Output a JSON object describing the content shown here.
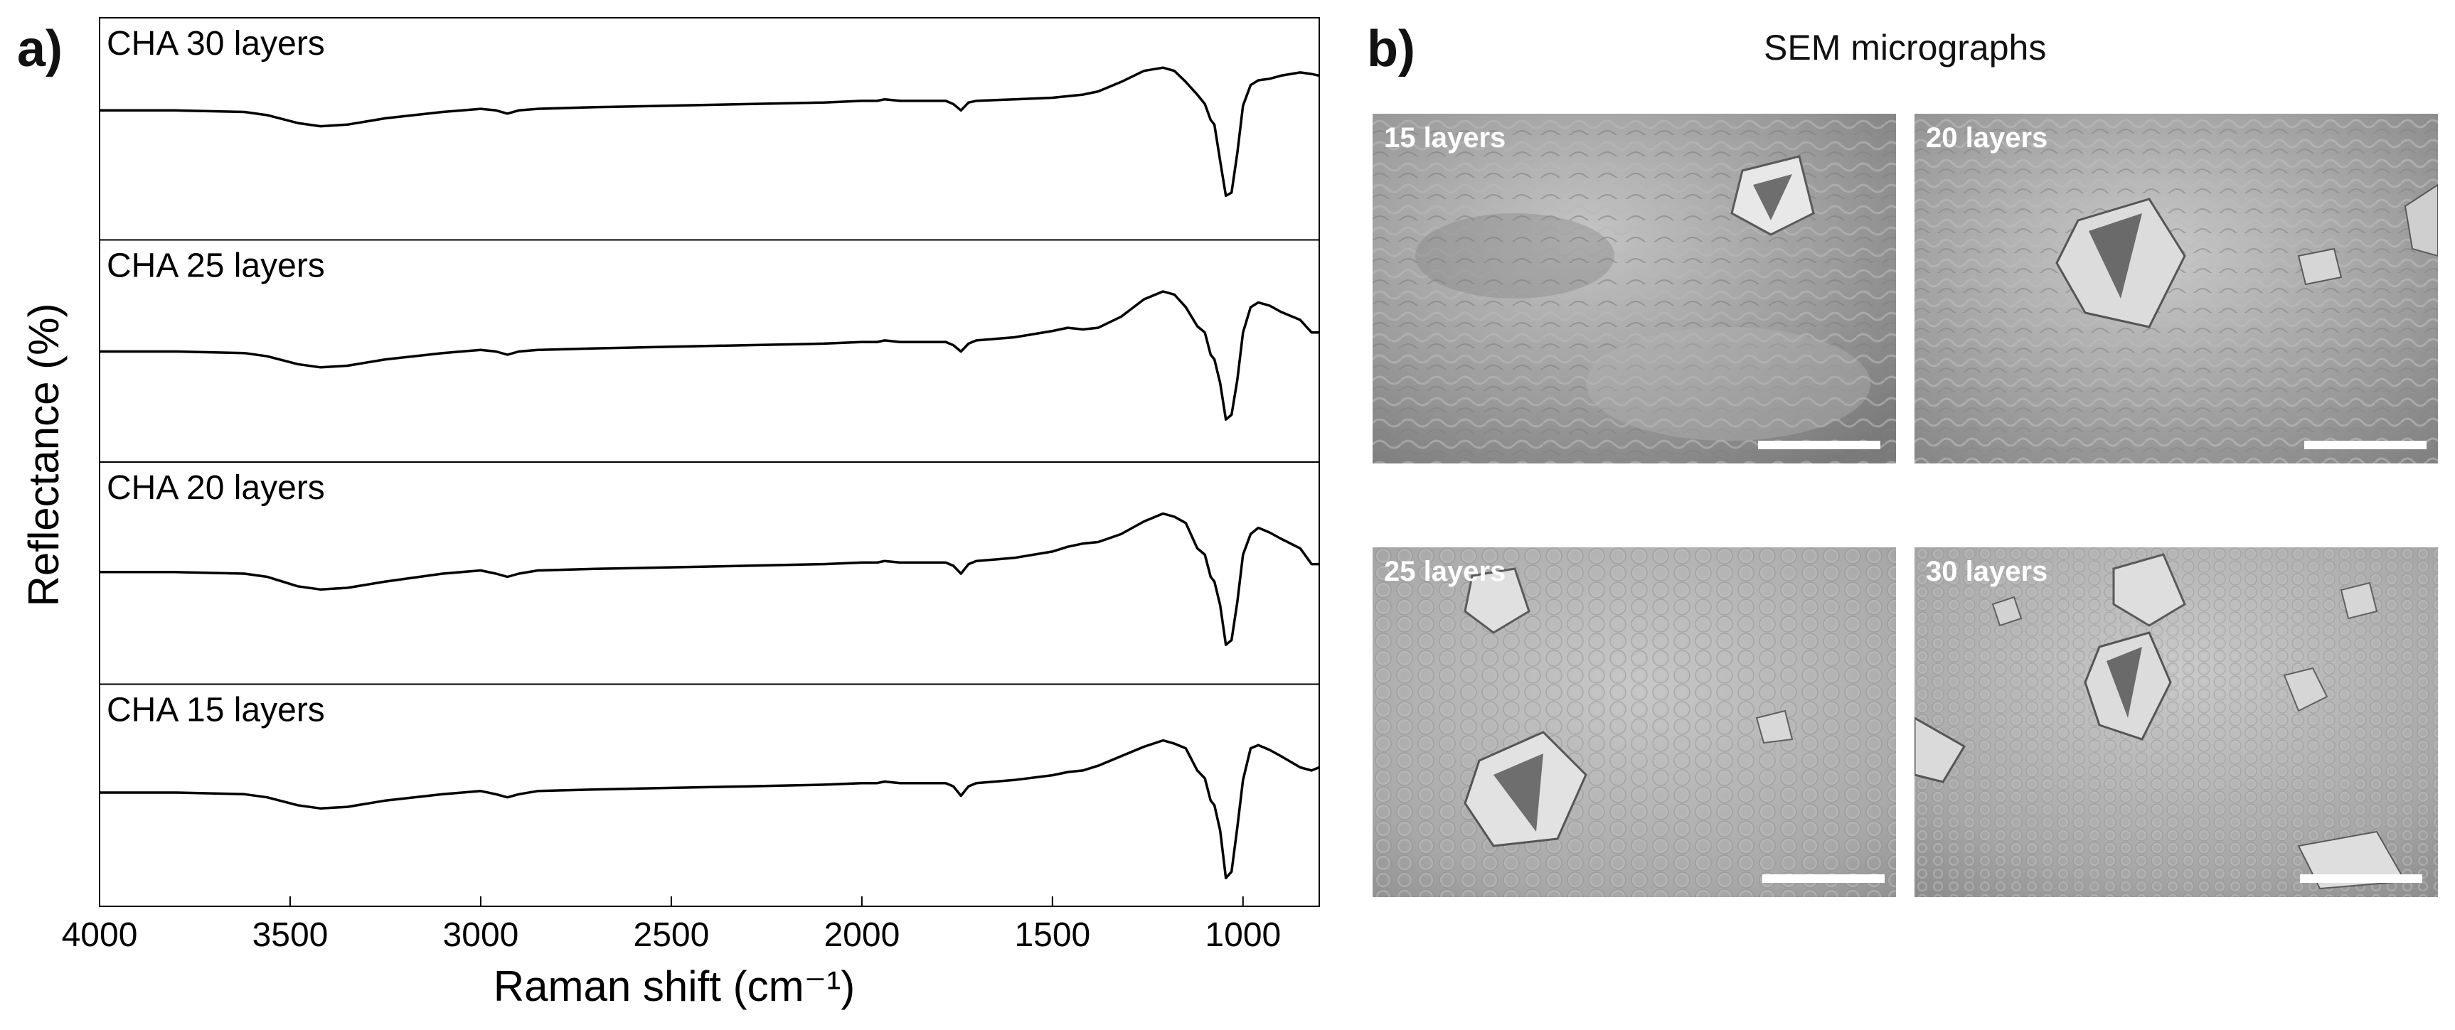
{
  "panel_a": {
    "letter": "a)"
  },
  "panel_b": {
    "letter": "b)",
    "title": "SEM micrographs",
    "images": [
      {
        "label": "15 layers"
      },
      {
        "label": "20 layers"
      },
      {
        "label": "25 layers"
      },
      {
        "label": "30 layers"
      }
    ]
  },
  "chart_data": {
    "type": "line",
    "title": "",
    "xlabel": "Raman shift (cm⁻¹)",
    "ylabel": "Reflectance (%)",
    "xlim": [
      4000,
      800
    ],
    "x_reversed": true,
    "x_ticks": [
      4000,
      3500,
      3000,
      2500,
      2000,
      1500,
      1000
    ],
    "y_ticks": false,
    "grid": false,
    "stacked_panels": true,
    "series": [
      {
        "name": "CHA 30 layers",
        "x": [
          4000,
          3800,
          3620,
          3560,
          3480,
          3420,
          3350,
          3250,
          3100,
          3000,
          2960,
          2930,
          2900,
          2850,
          2700,
          2500,
          2300,
          2100,
          2000,
          1960,
          1940,
          1900,
          1780,
          1760,
          1740,
          1720,
          1700,
          1600,
          1500,
          1420,
          1380,
          1320,
          1260,
          1210,
          1180,
          1150,
          1120,
          1100,
          1085,
          1075,
          1060,
          1045,
          1030,
          1015,
          1000,
          980,
          960,
          930,
          900,
          850,
          820,
          800
        ],
        "y": [
          72,
          72,
          71,
          69,
          64,
          62,
          63,
          67,
          71,
          73,
          72,
          70,
          72,
          73,
          74,
          75,
          76,
          77,
          78,
          78,
          79,
          78,
          78,
          76,
          72,
          77,
          78,
          79,
          80,
          82,
          84,
          90,
          97,
          99,
          97,
          90,
          82,
          76,
          66,
          63,
          40,
          18,
          20,
          45,
          75,
          88,
          91,
          92,
          94,
          96,
          95,
          94
        ]
      },
      {
        "name": "CHA 25 layers",
        "x": [
          4000,
          3800,
          3620,
          3560,
          3480,
          3420,
          3350,
          3250,
          3100,
          3000,
          2960,
          2930,
          2900,
          2850,
          2700,
          2500,
          2300,
          2100,
          2000,
          1960,
          1940,
          1900,
          1780,
          1760,
          1740,
          1720,
          1700,
          1600,
          1500,
          1460,
          1420,
          1380,
          1320,
          1260,
          1210,
          1180,
          1150,
          1120,
          1100,
          1085,
          1075,
          1060,
          1045,
          1030,
          1015,
          1000,
          980,
          960,
          930,
          900,
          850,
          820,
          800
        ],
        "y": [
          60,
          60,
          59,
          57,
          52,
          50,
          51,
          55,
          59,
          61,
          60,
          58,
          60,
          61,
          62,
          63,
          64,
          65,
          66,
          66,
          67,
          66,
          66,
          64,
          60,
          65,
          67,
          69,
          73,
          75,
          74,
          75,
          82,
          93,
          98,
          96,
          88,
          76,
          72,
          58,
          55,
          40,
          17,
          20,
          42,
          72,
          88,
          91,
          89,
          85,
          80,
          72,
          72
        ]
      },
      {
        "name": "CHA 20 layers",
        "x": [
          4000,
          3800,
          3620,
          3560,
          3480,
          3420,
          3350,
          3250,
          3100,
          3000,
          2960,
          2930,
          2900,
          2850,
          2700,
          2500,
          2300,
          2100,
          2000,
          1960,
          1940,
          1900,
          1780,
          1760,
          1740,
          1720,
          1700,
          1600,
          1500,
          1460,
          1420,
          1380,
          1320,
          1260,
          1210,
          1180,
          1150,
          1120,
          1100,
          1085,
          1075,
          1060,
          1045,
          1030,
          1015,
          1000,
          980,
          960,
          930,
          900,
          850,
          820,
          800
        ],
        "y": [
          61,
          61,
          60,
          58,
          52,
          50,
          51,
          55,
          60,
          62,
          60,
          58,
          60,
          62,
          63,
          64,
          65,
          66,
          67,
          67,
          68,
          67,
          67,
          65,
          60,
          66,
          68,
          70,
          74,
          77,
          79,
          80,
          85,
          93,
          98,
          96,
          92,
          76,
          72,
          58,
          55,
          40,
          15,
          18,
          42,
          72,
          85,
          89,
          86,
          82,
          76,
          66,
          66
        ]
      },
      {
        "name": "CHA 15 layers",
        "x": [
          4000,
          3800,
          3620,
          3560,
          3480,
          3420,
          3350,
          3250,
          3100,
          3000,
          2960,
          2930,
          2900,
          2850,
          2700,
          2500,
          2300,
          2100,
          2000,
          1960,
          1940,
          1900,
          1780,
          1760,
          1740,
          1720,
          1700,
          1600,
          1500,
          1460,
          1420,
          1380,
          1320,
          1260,
          1210,
          1180,
          1150,
          1120,
          1100,
          1085,
          1075,
          1060,
          1045,
          1030,
          1015,
          1000,
          980,
          960,
          930,
          900,
          850,
          820,
          800
        ],
        "y": [
          62,
          62,
          61,
          59,
          54,
          52,
          53,
          57,
          61,
          63,
          61,
          59,
          61,
          63,
          64,
          65,
          66,
          67,
          68,
          68,
          69,
          68,
          68,
          66,
          60,
          66,
          68,
          70,
          73,
          75,
          76,
          79,
          85,
          91,
          95,
          93,
          90,
          76,
          71,
          57,
          54,
          38,
          8,
          12,
          40,
          70,
          90,
          92,
          89,
          85,
          78,
          76,
          78
        ]
      }
    ]
  }
}
